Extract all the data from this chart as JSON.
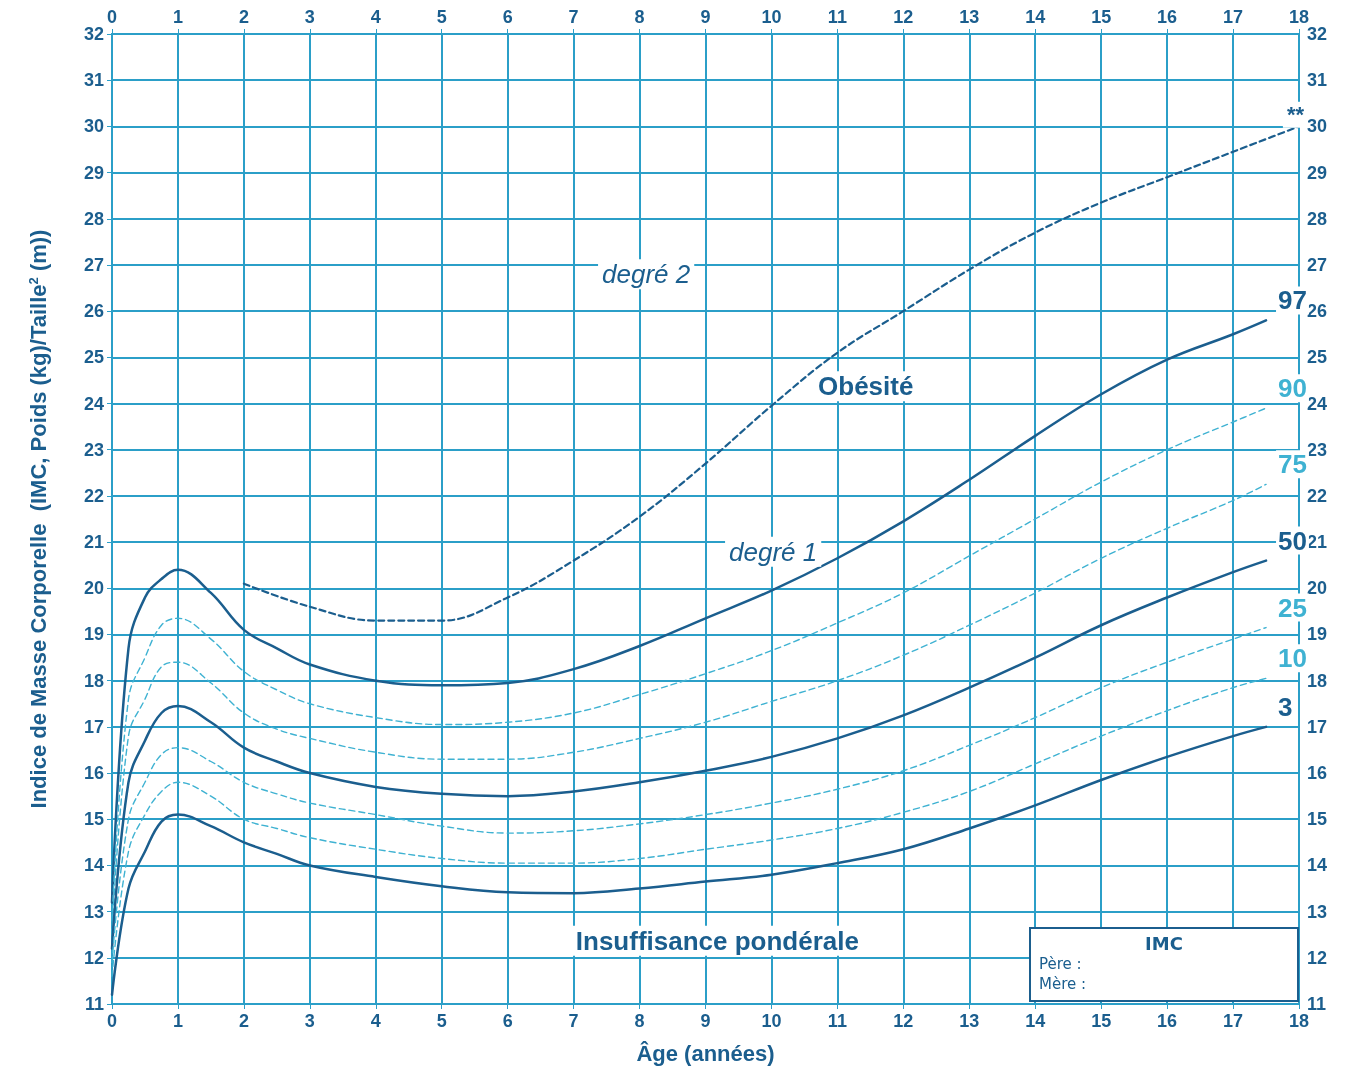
{
  "chart_data": {
    "type": "line",
    "xlabel": "Âge (années)",
    "ylabel": "Indice de Masse Corporelle  (IMC, Poids (kg)/Taille$^{2}$ (m))",
    "x": [
      0,
      0.25,
      0.5,
      0.75,
      1,
      1.5,
      2,
      2.5,
      3,
      4,
      5,
      6,
      7,
      8,
      9,
      10,
      11,
      12,
      13,
      14,
      15,
      16,
      17,
      17.5
    ],
    "series": [
      {
        "name": "97",
        "color": "#1b5e8e",
        "line_style": "solid",
        "values": [
          13.2,
          18.7,
          19.8,
          20.2,
          20.4,
          19.9,
          19.1,
          18.7,
          18.35,
          18.0,
          17.9,
          17.95,
          18.25,
          18.75,
          19.35,
          19.95,
          20.65,
          21.45,
          22.35,
          23.3,
          24.2,
          24.95,
          25.5,
          25.8
        ]
      },
      {
        "name": "90",
        "color": "#3fb2d2",
        "line_style": "dashed",
        "values": [
          12.8,
          17.6,
          18.5,
          19.2,
          19.35,
          18.9,
          18.2,
          17.8,
          17.5,
          17.2,
          17.05,
          17.1,
          17.3,
          17.7,
          18.15,
          18.65,
          19.25,
          19.9,
          20.7,
          21.5,
          22.3,
          23.0,
          23.6,
          23.9
        ]
      },
      {
        "name": "75",
        "color": "#3fb2d2",
        "line_style": "dashed",
        "values": [
          12.5,
          16.8,
          17.6,
          18.3,
          18.4,
          17.95,
          17.3,
          16.95,
          16.75,
          16.45,
          16.3,
          16.3,
          16.45,
          16.75,
          17.1,
          17.55,
          18.0,
          18.55,
          19.2,
          19.9,
          20.65,
          21.3,
          21.9,
          22.25
        ]
      },
      {
        "name": "50",
        "color": "#1b5e8e",
        "line_style": "solid",
        "values": [
          12.2,
          15.8,
          16.7,
          17.3,
          17.45,
          17.1,
          16.55,
          16.25,
          16.0,
          15.7,
          15.55,
          15.5,
          15.6,
          15.8,
          16.05,
          16.35,
          16.75,
          17.25,
          17.85,
          18.5,
          19.2,
          19.8,
          20.35,
          20.6
        ]
      },
      {
        "name": "25",
        "color": "#3fb2d2",
        "line_style": "dashed",
        "values": [
          11.9,
          15.0,
          15.8,
          16.4,
          16.55,
          16.25,
          15.8,
          15.55,
          15.35,
          15.1,
          14.85,
          14.7,
          14.75,
          14.9,
          15.1,
          15.35,
          15.65,
          16.05,
          16.6,
          17.2,
          17.85,
          18.4,
          18.9,
          19.15
        ]
      },
      {
        "name": "10",
        "color": "#3fb2d2",
        "line_style": "dashed",
        "values": [
          11.6,
          14.3,
          15.1,
          15.6,
          15.8,
          15.5,
          15.0,
          14.8,
          14.6,
          14.35,
          14.15,
          14.05,
          14.05,
          14.15,
          14.35,
          14.55,
          14.8,
          15.15,
          15.6,
          16.2,
          16.8,
          17.35,
          17.85,
          18.05
        ]
      },
      {
        "name": "3",
        "color": "#1b5e8e",
        "line_style": "solid",
        "values": [
          11.2,
          13.5,
          14.3,
          14.95,
          15.1,
          14.85,
          14.5,
          14.25,
          14.0,
          13.75,
          13.55,
          13.42,
          13.4,
          13.5,
          13.65,
          13.8,
          14.05,
          14.35,
          14.8,
          15.3,
          15.85,
          16.35,
          16.8,
          17.0
        ]
      },
      {
        "color": "#1b5e8e",
        "line_style": "dashed",
        "x": [
          2,
          3,
          4,
          5,
          6,
          7,
          8,
          9,
          10,
          11,
          12,
          13,
          14,
          15,
          16,
          17,
          18
        ],
        "values": [
          20.1,
          19.6,
          19.3,
          19.3,
          19.8,
          20.6,
          21.55,
          22.7,
          23.95,
          25.1,
          26.0,
          26.9,
          27.7,
          28.35,
          28.9,
          29.45,
          30.0
        ]
      }
    ],
    "xlim": [
      0,
      18
    ],
    "xticks": [
      0,
      1,
      2,
      3,
      4,
      5,
      6,
      7,
      8,
      9,
      10,
      11,
      12,
      13,
      14,
      15,
      16,
      17,
      18
    ],
    "x2lim": [
      0,
      18
    ],
    "x2ticks": [
      0,
      1,
      2,
      3,
      4,
      5,
      6,
      7,
      8,
      9,
      10,
      11,
      12,
      13,
      14,
      15,
      16,
      17,
      18
    ],
    "ylim": [
      11,
      32
    ],
    "yticks": [
      11,
      12,
      13,
      14,
      15,
      16,
      17,
      18,
      19,
      20,
      21,
      22,
      23,
      24,
      25,
      26,
      27,
      28,
      29,
      30,
      31,
      32
    ],
    "y2lim": [
      11,
      32
    ],
    "y2ticks": [
      11,
      12,
      13,
      14,
      15,
      16,
      17,
      18,
      19,
      20,
      21,
      22,
      23,
      24,
      25,
      26,
      27,
      28,
      29,
      30,
      31,
      32
    ],
    "grid": true,
    "legend": false,
    "marker": "none",
    "annotations": [
      "degré 2",
      "Obésité",
      "degré 1",
      "Insuffisance pondérale",
      "**",
      "IMC",
      "Père :",
      "Mère :"
    ]
  }
}
